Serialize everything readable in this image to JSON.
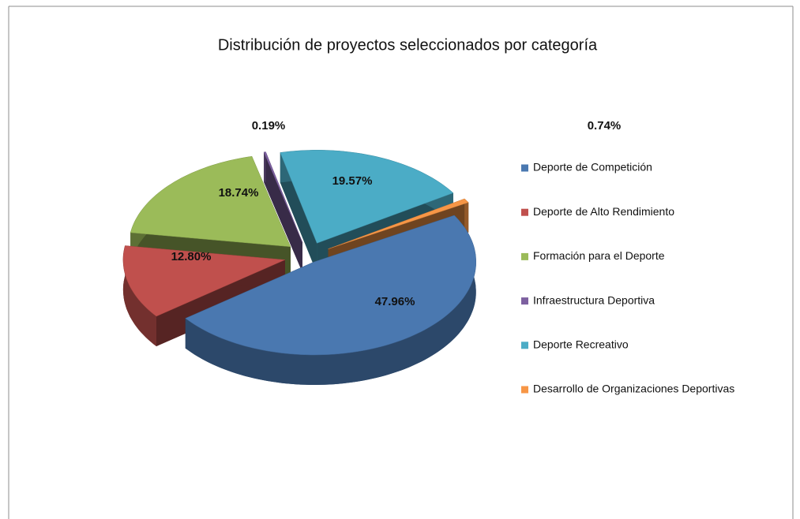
{
  "chart_data": {
    "type": "pie",
    "title": "Distribución de proyectos seleccionados por categoría",
    "categories": [
      "Deporte de Competición",
      "Deporte de Alto Rendimiento",
      "Formación para el Deporte",
      "Infraestructura Deportiva",
      "Deporte Recreativo",
      "Desarrollo de Organizaciones Deportivas"
    ],
    "values": [
      47.96,
      12.8,
      18.74,
      0.19,
      19.57,
      0.74
    ],
    "value_labels": [
      "47.96%",
      "12.80%",
      "18.74%",
      "0.19%",
      "19.57%",
      "0.74%"
    ],
    "colors": [
      "#4a78b0",
      "#c0504d",
      "#9bbb59",
      "#7d60a0",
      "#4bacc6",
      "#f79646"
    ],
    "legend": "right"
  }
}
